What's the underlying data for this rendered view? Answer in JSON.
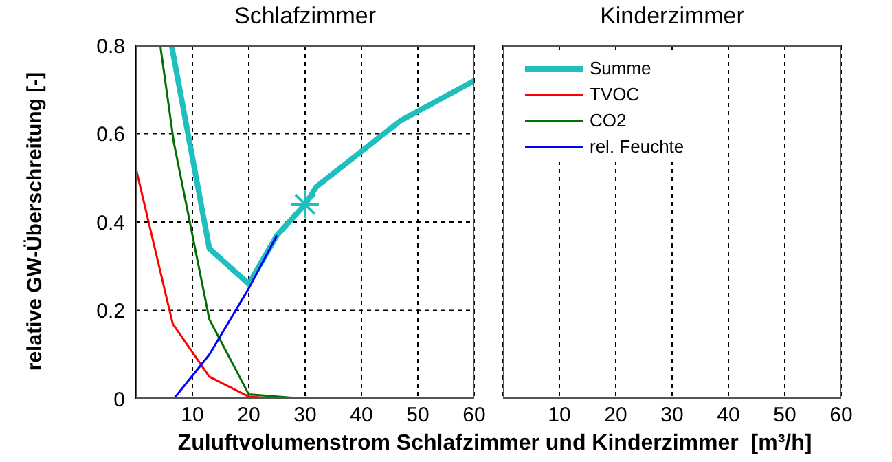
{
  "chart_data": [
    {
      "type": "line",
      "title": "Schlafzimmer",
      "ylabel": "relative GW-Überschreitung [-]",
      "xlabel": "Zuluftvolumenstrom Schlafzimmer und Kinderzimmer  [m³/h]",
      "xlim": [
        0,
        60
      ],
      "xticks": [
        {
          "value": 0,
          "label": null
        },
        10,
        20,
        30,
        40,
        50,
        60
      ],
      "ylim": [
        0,
        0.8
      ],
      "yticks": [
        0,
        0.2,
        0.4,
        0.6,
        0.8
      ],
      "grid": true,
      "legend": "top right",
      "series": [
        {
          "name": "Summe",
          "color": "#1fbfbf",
          "x": [
            6.3,
            13,
            20,
            25,
            30,
            32,
            40,
            47,
            60
          ],
          "values": [
            0.8,
            0.34,
            0.26,
            0.37,
            0.44,
            0.48,
            0.56,
            0.63,
            0.72
          ]
        },
        {
          "name": "TVOC",
          "color": "#ff0000",
          "x": [
            0,
            6.5,
            13,
            20,
            25,
            60
          ],
          "values": [
            0.52,
            0.17,
            0.05,
            0.005,
            0,
            0
          ]
        },
        {
          "name": "CO2",
          "color": "#007000",
          "x": [
            4.3,
            6.7,
            13,
            20,
            30
          ],
          "values": [
            0.8,
            0.58,
            0.18,
            0.01,
            0
          ]
        },
        {
          "name": "rel. Feuchte",
          "color": "#0000ff",
          "x": [
            0,
            6.7,
            13,
            20,
            25
          ],
          "values": [
            0,
            0,
            0.1,
            0.25,
            0.37
          ]
        },
        {
          "type": "scatter",
          "marker": "cross",
          "color": "#1fbfbf",
          "x": [
            30
          ],
          "values": [
            0.44
          ]
        }
      ]
    },
    {
      "type": "line",
      "title": "Kinderzimmer",
      "xlim": [
        0,
        60
      ],
      "xticks": [
        {
          "value": 0,
          "label": null
        },
        10,
        20,
        30,
        40,
        50,
        60
      ],
      "ylim": [
        0,
        0.8
      ],
      "yticks": [
        0,
        0.2,
        0.4,
        0.6,
        0.8
      ],
      "grid": true,
      "tick_labels": "x"
    }
  ]
}
